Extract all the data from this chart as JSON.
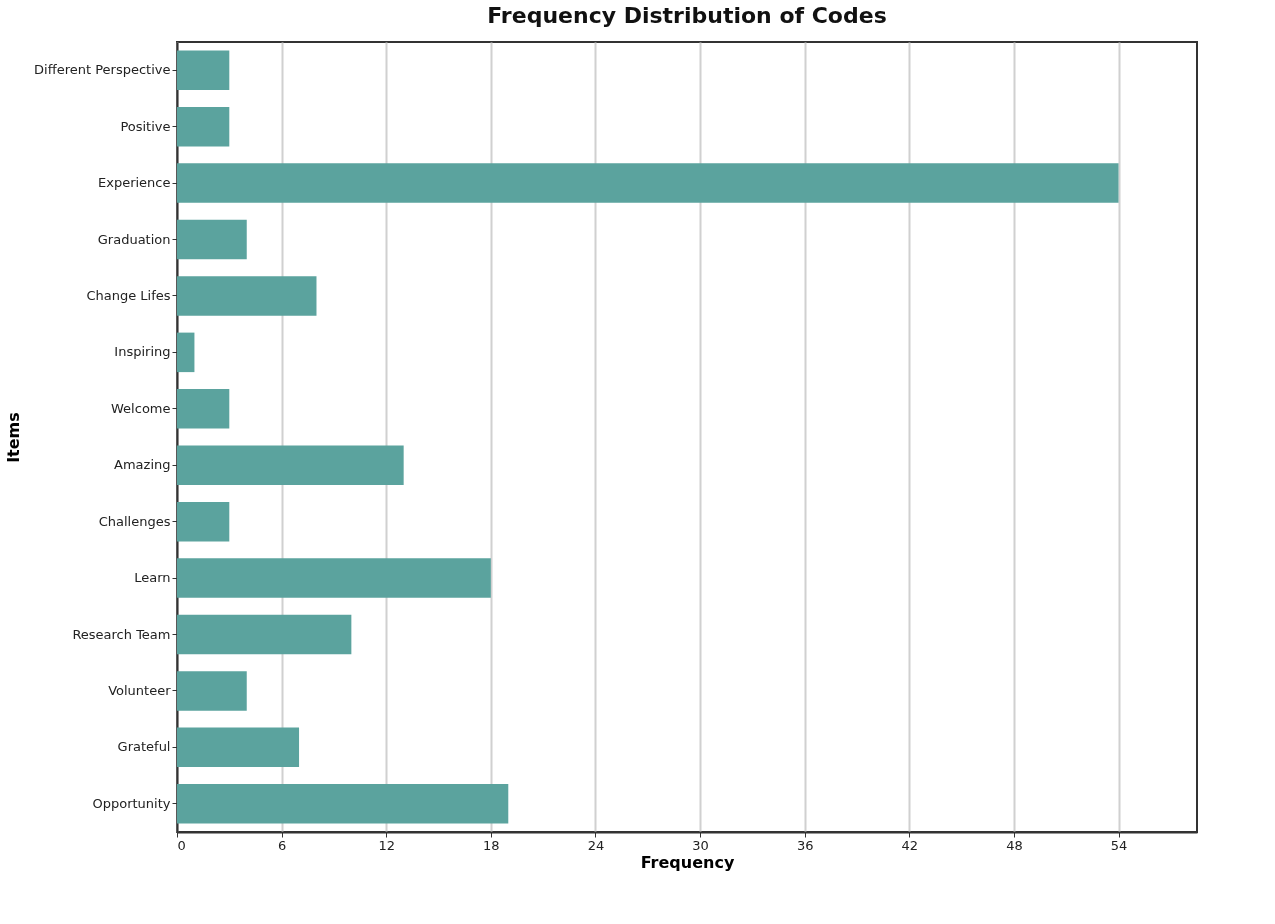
{
  "chart_data": {
    "type": "bar",
    "orientation": "horizontal",
    "title": "Frequency Distribution of Codes",
    "xlabel": "Frequency",
    "ylabel": "Items",
    "categories": [
      "Different Perspective",
      "Positive",
      "Experience",
      "Graduation",
      "Change Lifes",
      "Inspiring",
      "Welcome",
      "Amazing",
      "Challenges",
      "Learn",
      "Research Team",
      "Volunteer",
      "Grateful",
      "Opportunity"
    ],
    "values": [
      3,
      3,
      54,
      4,
      8,
      1,
      3,
      13,
      3,
      18,
      10,
      4,
      7,
      19
    ],
    "color": "#5ba39e",
    "xlim": [
      0,
      58.5
    ],
    "xticks": [
      0,
      6,
      12,
      18,
      24,
      30,
      36,
      42,
      48,
      54
    ],
    "grid": "x"
  }
}
